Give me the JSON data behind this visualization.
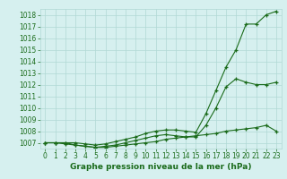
{
  "x": [
    0,
    1,
    2,
    3,
    4,
    5,
    6,
    7,
    8,
    9,
    10,
    11,
    12,
    13,
    14,
    15,
    16,
    17,
    18,
    19,
    20,
    21,
    22,
    23
  ],
  "curve1": [
    1007.0,
    1007.0,
    1007.0,
    1007.0,
    1006.9,
    1006.8,
    1006.9,
    1007.1,
    1007.3,
    1007.5,
    1007.8,
    1008.0,
    1008.1,
    1008.1,
    1008.0,
    1007.9,
    1009.5,
    1011.5,
    1013.5,
    1015.0,
    1017.2,
    1017.2,
    1018.0,
    1018.3
  ],
  "curve2": [
    1007.0,
    1007.0,
    1007.0,
    1006.8,
    1006.7,
    1006.6,
    1006.7,
    1006.8,
    1007.0,
    1007.2,
    1007.4,
    1007.6,
    1007.7,
    1007.6,
    1007.5,
    1007.5,
    1008.5,
    1010.0,
    1011.8,
    1012.5,
    1012.2,
    1012.0,
    1012.0,
    1012.2
  ],
  "curve3": [
    1007.0,
    1007.0,
    1006.9,
    1006.8,
    1006.7,
    1006.6,
    1006.6,
    1006.7,
    1006.8,
    1006.9,
    1007.0,
    1007.1,
    1007.3,
    1007.4,
    1007.5,
    1007.6,
    1007.7,
    1007.8,
    1008.0,
    1008.1,
    1008.2,
    1008.3,
    1008.5,
    1008.0
  ],
  "ylim": [
    1006.5,
    1018.5
  ],
  "yticks": [
    1007,
    1008,
    1009,
    1010,
    1011,
    1012,
    1013,
    1014,
    1015,
    1016,
    1017,
    1018
  ],
  "xlim": [
    -0.5,
    23.5
  ],
  "xticks": [
    0,
    1,
    2,
    3,
    4,
    5,
    6,
    7,
    8,
    9,
    10,
    11,
    12,
    13,
    14,
    15,
    16,
    17,
    18,
    19,
    20,
    21,
    22,
    23
  ],
  "line_color": "#1a6b1a",
  "bg_color": "#d6f0ef",
  "grid_color": "#b0d8d5",
  "xlabel": "Graphe pression niveau de la mer (hPa)",
  "xlabel_color": "#1a6b1a",
  "marker": "+",
  "markersize": 3.5,
  "linewidth": 0.8,
  "tick_fontsize": 5.5,
  "xlabel_fontsize": 6.5
}
